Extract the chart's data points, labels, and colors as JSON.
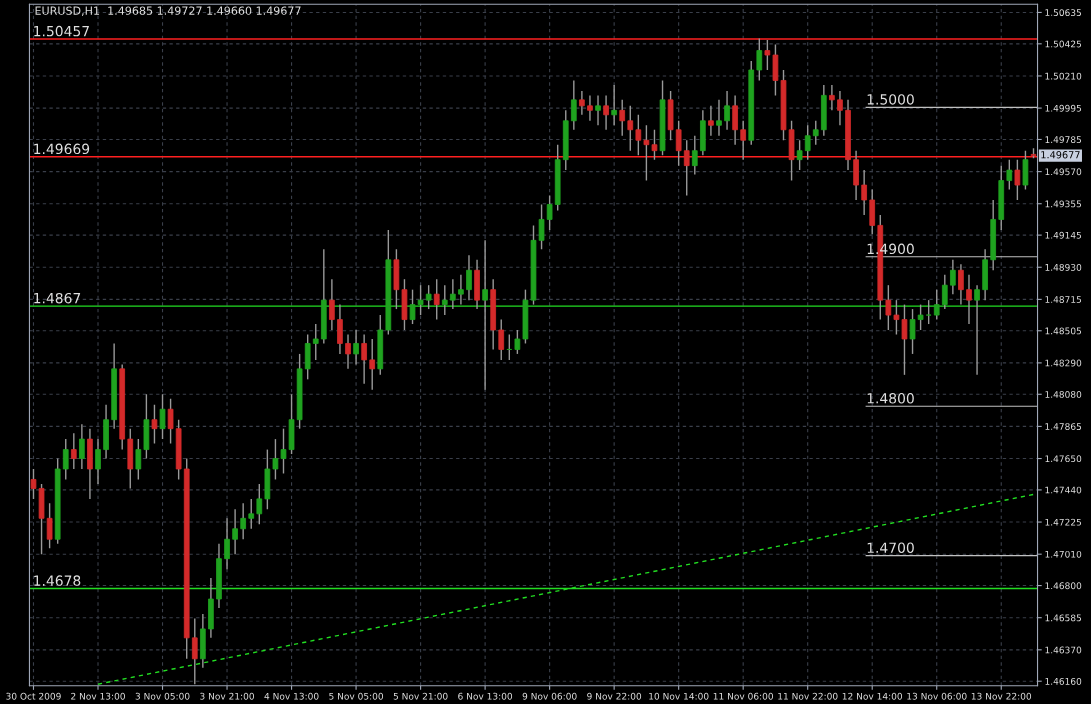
{
  "chart_data": {
    "type": "candlestick",
    "title": "EURUSD,H1  1.49685 1.49727 1.49660 1.49677",
    "categories": [
      "30 Oct 2009",
      null,
      null,
      null,
      null,
      null,
      null,
      null,
      "2 Nov 13:00",
      null,
      null,
      null,
      null,
      null,
      null,
      null,
      "3 Nov 05:00",
      null,
      null,
      null,
      null,
      null,
      null,
      null,
      "3 Nov 21:00",
      null,
      null,
      null,
      null,
      null,
      null,
      null,
      "4 Nov 13:00",
      null,
      null,
      null,
      null,
      null,
      null,
      null,
      "5 Nov 05:00",
      null,
      null,
      null,
      null,
      null,
      null,
      null,
      "5 Nov 21:00",
      null,
      null,
      null,
      null,
      null,
      null,
      null,
      "6 Nov 13:00",
      null,
      null,
      null,
      null,
      null,
      null,
      null,
      "9 Nov 06:00",
      null,
      null,
      null,
      null,
      null,
      null,
      null,
      "9 Nov 22:00",
      null,
      null,
      null,
      null,
      null,
      null,
      null,
      "10 Nov 14:00",
      null,
      null,
      null,
      null,
      null,
      null,
      null,
      "11 Nov 06:00",
      null,
      null,
      null,
      null,
      null,
      null,
      null,
      "11 Nov 22:00",
      null,
      null,
      null,
      null,
      null,
      null,
      null,
      "12 Nov 14:00",
      null,
      null,
      null,
      null,
      null,
      null,
      null,
      "13 Nov 06:00",
      null,
      null,
      null,
      null,
      null,
      null,
      null,
      "13 Nov 22:00",
      null,
      null,
      null,
      null
    ],
    "ohlc": [
      [
        1.4751,
        1.4758,
        1.4738,
        1.4745
      ],
      [
        1.4745,
        1.4748,
        1.4701,
        1.4725
      ],
      [
        1.4725,
        1.4735,
        1.4705,
        1.4711
      ],
      [
        1.4711,
        1.4765,
        1.4708,
        1.4758
      ],
      [
        1.4758,
        1.4778,
        1.4751,
        1.4771
      ],
      [
        1.4771,
        1.4782,
        1.4758,
        1.4765
      ],
      [
        1.4765,
        1.4788,
        1.4758,
        1.4778
      ],
      [
        1.4778,
        1.4785,
        1.4738,
        1.4758
      ],
      [
        1.4758,
        1.4778,
        1.4748,
        1.4771
      ],
      [
        1.4771,
        1.4801,
        1.4765,
        1.4791
      ],
      [
        1.4791,
        1.4842,
        1.4785,
        1.4825
      ],
      [
        1.4825,
        1.4828,
        1.4771,
        1.4778
      ],
      [
        1.4778,
        1.4785,
        1.4745,
        1.4758
      ],
      [
        1.4758,
        1.4778,
        1.4751,
        1.4771
      ],
      [
        1.4771,
        1.4808,
        1.4765,
        1.4791
      ],
      [
        1.4791,
        1.4801,
        1.4775,
        1.4785
      ],
      [
        1.4785,
        1.4808,
        1.4778,
        1.4798
      ],
      [
        1.4798,
        1.4805,
        1.4775,
        1.4785
      ],
      [
        1.4785,
        1.4791,
        1.4751,
        1.4758
      ],
      [
        1.4758,
        1.4765,
        1.4631,
        1.4645
      ],
      [
        1.4645,
        1.4658,
        1.4614,
        1.4631
      ],
      [
        1.4631,
        1.4661,
        1.4625,
        1.4651
      ],
      [
        1.4651,
        1.4685,
        1.4645,
        1.4671
      ],
      [
        1.4671,
        1.4708,
        1.4665,
        1.4698
      ],
      [
        1.4698,
        1.4725,
        1.4691,
        1.4711
      ],
      [
        1.4711,
        1.4731,
        1.4701,
        1.4718
      ],
      [
        1.4718,
        1.4735,
        1.4711,
        1.4725
      ],
      [
        1.4725,
        1.4738,
        1.4718,
        1.4728
      ],
      [
        1.4728,
        1.4748,
        1.4721,
        1.4738
      ],
      [
        1.4738,
        1.4771,
        1.4731,
        1.4758
      ],
      [
        1.4758,
        1.4778,
        1.4751,
        1.4765
      ],
      [
        1.4765,
        1.4785,
        1.4755,
        1.4771
      ],
      [
        1.4771,
        1.4808,
        1.4768,
        1.4791
      ],
      [
        1.4791,
        1.4835,
        1.4785,
        1.4825
      ],
      [
        1.4825,
        1.4848,
        1.4818,
        1.4842
      ],
      [
        1.4842,
        1.4855,
        1.4831,
        1.4845
      ],
      [
        1.4845,
        1.4905,
        1.4842,
        1.4871
      ],
      [
        1.4871,
        1.4885,
        1.4851,
        1.4858
      ],
      [
        1.4858,
        1.4868,
        1.4835,
        1.4842
      ],
      [
        1.4842,
        1.4848,
        1.4825,
        1.4835
      ],
      [
        1.4835,
        1.4851,
        1.4828,
        1.4842
      ],
      [
        1.4842,
        1.4848,
        1.4815,
        1.4831
      ],
      [
        1.4831,
        1.4845,
        1.4811,
        1.4825
      ],
      [
        1.4825,
        1.4861,
        1.4821,
        1.4851
      ],
      [
        1.4851,
        1.4918,
        1.4848,
        1.4898
      ],
      [
        1.4898,
        1.4905,
        1.4865,
        1.4878
      ],
      [
        1.4878,
        1.4885,
        1.4851,
        1.4858
      ],
      [
        1.4858,
        1.4878,
        1.4855,
        1.4868
      ],
      [
        1.4868,
        1.4881,
        1.4861,
        1.4871
      ],
      [
        1.4871,
        1.4881,
        1.4865,
        1.4875
      ],
      [
        1.4875,
        1.4885,
        1.4858,
        1.4868
      ],
      [
        1.4868,
        1.4881,
        1.4861,
        1.4871
      ],
      [
        1.4871,
        1.4885,
        1.4865,
        1.4875
      ],
      [
        1.4875,
        1.4888,
        1.4868,
        1.4878
      ],
      [
        1.4878,
        1.4901,
        1.4871,
        1.4891
      ],
      [
        1.4891,
        1.4898,
        1.4865,
        1.4871
      ],
      [
        1.4871,
        1.4911,
        1.4811,
        1.4878
      ],
      [
        1.4878,
        1.4885,
        1.4838,
        1.4851
      ],
      [
        1.4851,
        1.4858,
        1.4831,
        1.4838
      ],
      [
        1.4838,
        1.4848,
        1.4831,
        1.4838
      ],
      [
        1.4838,
        1.4851,
        1.4835,
        1.4845
      ],
      [
        1.4845,
        1.4878,
        1.4842,
        1.4871
      ],
      [
        1.4871,
        1.4921,
        1.4868,
        1.4911
      ],
      [
        1.4911,
        1.4935,
        1.4905,
        1.4925
      ],
      [
        1.4925,
        1.4941,
        1.4918,
        1.4935
      ],
      [
        1.4935,
        1.4975,
        1.4931,
        1.4965
      ],
      [
        1.4965,
        1.4998,
        1.4958,
        1.4991
      ],
      [
        1.4991,
        1.5018,
        1.4985,
        1.5005
      ],
      [
        1.5005,
        1.5011,
        1.4995,
        1.5001
      ],
      [
        1.5001,
        1.5008,
        1.4991,
        1.4998
      ],
      [
        1.4998,
        1.5008,
        1.4988,
        1.5001
      ],
      [
        1.5001,
        1.5008,
        1.4985,
        1.4995
      ],
      [
        1.4995,
        1.5015,
        1.4988,
        1.4998
      ],
      [
        1.4998,
        1.5005,
        1.4981,
        1.4991
      ],
      [
        1.4991,
        1.5001,
        1.4971,
        1.4985
      ],
      [
        1.4985,
        1.4995,
        1.4968,
        1.4978
      ],
      [
        1.4978,
        1.4988,
        1.4951,
        1.4975
      ],
      [
        1.4975,
        1.4985,
        1.4965,
        1.4971
      ],
      [
        1.4971,
        1.5018,
        1.4968,
        1.5005
      ],
      [
        1.5005,
        1.5011,
        1.4978,
        1.4985
      ],
      [
        1.4985,
        1.4991,
        1.4961,
        1.4971
      ],
      [
        1.4971,
        1.4978,
        1.4941,
        1.4961
      ],
      [
        1.4961,
        1.4981,
        1.4955,
        1.4971
      ],
      [
        1.4971,
        1.4998,
        1.4968,
        1.4991
      ],
      [
        1.4991,
        1.5001,
        1.4981,
        1.4988
      ],
      [
        1.4988,
        1.5005,
        1.4981,
        1.4991
      ],
      [
        1.4991,
        1.5011,
        1.4985,
        1.5001
      ],
      [
        1.5001,
        1.5008,
        1.4975,
        1.4985
      ],
      [
        1.4985,
        1.4991,
        1.4965,
        1.4978
      ],
      [
        1.4978,
        1.5031,
        1.4975,
        1.5025
      ],
      [
        1.5025,
        1.5046,
        1.5018,
        1.5038
      ],
      [
        1.5038,
        1.5045,
        1.5025,
        1.5035
      ],
      [
        1.5035,
        1.5042,
        1.5008,
        1.5018
      ],
      [
        1.5018,
        1.5025,
        1.4978,
        1.4985
      ],
      [
        1.4985,
        1.4991,
        1.4951,
        1.4965
      ],
      [
        1.4965,
        1.4978,
        1.4958,
        1.4971
      ],
      [
        1.4971,
        1.4988,
        1.4965,
        1.4981
      ],
      [
        1.4981,
        1.4991,
        1.4975,
        1.4985
      ],
      [
        1.4985,
        1.5015,
        1.4981,
        1.5008
      ],
      [
        1.5008,
        1.5015,
        1.4998,
        1.5005
      ],
      [
        1.5005,
        1.5011,
        1.4988,
        1.4998
      ],
      [
        1.4998,
        1.5005,
        1.4958,
        1.4965
      ],
      [
        1.4965,
        1.4971,
        1.4938,
        1.4948
      ],
      [
        1.4948,
        1.4958,
        1.4928,
        1.4938
      ],
      [
        1.4938,
        1.4945,
        1.4915,
        1.4921
      ],
      [
        1.4921,
        1.4928,
        1.4858,
        1.4871
      ],
      [
        1.4871,
        1.4881,
        1.4851,
        1.4861
      ],
      [
        1.4861,
        1.4871,
        1.4848,
        1.4858
      ],
      [
        1.4858,
        1.4868,
        1.4821,
        1.4845
      ],
      [
        1.4845,
        1.4865,
        1.4835,
        1.4858
      ],
      [
        1.4858,
        1.4868,
        1.4851,
        1.4861
      ],
      [
        1.4861,
        1.4871,
        1.4855,
        1.4861
      ],
      [
        1.4861,
        1.4878,
        1.4858,
        1.4868
      ],
      [
        1.4868,
        1.4888,
        1.4865,
        1.4881
      ],
      [
        1.4881,
        1.4898,
        1.4875,
        1.4891
      ],
      [
        1.4891,
        1.4895,
        1.4868,
        1.4878
      ],
      [
        1.4878,
        1.4888,
        1.4855,
        1.4871
      ],
      [
        1.4871,
        1.4881,
        1.4821,
        1.4878
      ],
      [
        1.4878,
        1.4905,
        1.4871,
        1.4898
      ],
      [
        1.4898,
        1.4938,
        1.4891,
        1.4925
      ],
      [
        1.4925,
        1.4961,
        1.4918,
        1.4951
      ],
      [
        1.4951,
        1.4965,
        1.4945,
        1.4958
      ],
      [
        1.4958,
        1.4965,
        1.4938,
        1.4948
      ],
      [
        1.4948,
        1.4971,
        1.4945,
        1.4965
      ],
      [
        1.49685,
        1.49727,
        1.4966,
        1.49677
      ]
    ],
    "colors": [
      "#d42a2a",
      "#d42a2a",
      "#d42a2a",
      "#1fa31f",
      "#1fa31f",
      "#d42a2a",
      "#1fa31f",
      "#d42a2a",
      "#1fa31f",
      "#1fa31f",
      "#1fa31f",
      "#d42a2a",
      "#d42a2a",
      "#1fa31f",
      "#1fa31f",
      "#d42a2a",
      "#1fa31f",
      "#d42a2a",
      "#d42a2a",
      "#d42a2a",
      "#d42a2a",
      "#1fa31f",
      "#1fa31f",
      "#1fa31f",
      "#1fa31f",
      "#1fa31f",
      "#1fa31f",
      "#1fa31f",
      "#1fa31f",
      "#1fa31f",
      "#1fa31f",
      "#1fa31f",
      "#1fa31f",
      "#1fa31f",
      "#1fa31f",
      "#1fa31f",
      "#1fa31f",
      "#d42a2a",
      "#d42a2a",
      "#d42a2a",
      "#1fa31f",
      "#d42a2a",
      "#d42a2a",
      "#1fa31f",
      "#1fa31f",
      "#d42a2a",
      "#d42a2a",
      "#1fa31f",
      "#1fa31f",
      "#1fa31f",
      "#d42a2a",
      "#1fa31f",
      "#1fa31f",
      "#1fa31f",
      "#1fa31f",
      "#d42a2a",
      "#1fa31f",
      "#d42a2a",
      "#d42a2a",
      "#1fa31f",
      "#1fa31f",
      "#1fa31f",
      "#1fa31f",
      "#1fa31f",
      "#1fa31f",
      "#1fa31f",
      "#1fa31f",
      "#1fa31f",
      "#d42a2a",
      "#d42a2a",
      "#1fa31f",
      "#d42a2a",
      "#1fa31f",
      "#d42a2a",
      "#d42a2a",
      "#d42a2a",
      "#d42a2a",
      "#d42a2a",
      "#1fa31f",
      "#d42a2a",
      "#d42a2a",
      "#d42a2a",
      "#1fa31f",
      "#1fa31f",
      "#d42a2a",
      "#1fa31f",
      "#1fa31f",
      "#d42a2a",
      "#d42a2a",
      "#1fa31f",
      "#1fa31f",
      "#d42a2a",
      "#d42a2a",
      "#d42a2a",
      "#d42a2a",
      "#1fa31f",
      "#1fa31f",
      "#1fa31f",
      "#1fa31f",
      "#d42a2a",
      "#d42a2a",
      "#d42a2a",
      "#d42a2a",
      "#d42a2a",
      "#d42a2a",
      "#d42a2a",
      "#d42a2a",
      "#d42a2a",
      "#d42a2a",
      "#1fa31f",
      "#1fa31f",
      "#1fa31f",
      "#1fa31f",
      "#1fa31f",
      "#1fa31f",
      "#d42a2a",
      "#d42a2a",
      "#1fa31f",
      "#1fa31f",
      "#1fa31f",
      "#1fa31f",
      "#1fa31f",
      "#d42a2a",
      "#1fa31f",
      "#d42a2a"
    ],
    "series": [
      {
        "type": "line",
        "values": [
          null,
          null,
          null,
          null,
          null,
          null,
          null,
          null,
          1.4614,
          null,
          null,
          null,
          null,
          null,
          null,
          null,
          null,
          null,
          null,
          null,
          null,
          null,
          null,
          null,
          null,
          null,
          null,
          null,
          null,
          null,
          null,
          null,
          null,
          null,
          null,
          null,
          null,
          null,
          null,
          null,
          null,
          null,
          null,
          null,
          null,
          null,
          null,
          null,
          null,
          null,
          null,
          null,
          null,
          null,
          null,
          null,
          null,
          null,
          null,
          null,
          null,
          null,
          null,
          null,
          null,
          null,
          null,
          null,
          null,
          null,
          null,
          null,
          null,
          null,
          null,
          null,
          null,
          null,
          null,
          null,
          null,
          null,
          null,
          null,
          null,
          null,
          null,
          null,
          null,
          null,
          null,
          null,
          null,
          null,
          null,
          null,
          null,
          null,
          null,
          null,
          null,
          null,
          null,
          null,
          null,
          null,
          null,
          null,
          null,
          null,
          null,
          null,
          null,
          null,
          null,
          null,
          null,
          null,
          null,
          null,
          null,
          null,
          null,
          null,
          1.4741
        ],
        "color": "#22dd22",
        "line_style": "dashed"
      }
    ],
    "ylim": [
      1.4613,
      1.5069
    ],
    "yticks": [
      {
        "value": 1.4616,
        "label": "1.46160"
      },
      {
        "value": 1.4637,
        "label": "1.46370"
      },
      {
        "value": 1.46585,
        "label": "1.46585"
      },
      {
        "value": 1.468,
        "label": "1.46800"
      },
      {
        "value": 1.4701,
        "label": "1.47010"
      },
      {
        "value": 1.47225,
        "label": "1.47225"
      },
      {
        "value": 1.4744,
        "label": "1.47440"
      },
      {
        "value": 1.4765,
        "label": "1.47650"
      },
      {
        "value": 1.47865,
        "label": "1.47865"
      },
      {
        "value": 1.4808,
        "label": "1.48080"
      },
      {
        "value": 1.4829,
        "label": "1.48290"
      },
      {
        "value": 1.48505,
        "label": "1.48505"
      },
      {
        "value": 1.48715,
        "label": "1.48715"
      },
      {
        "value": 1.4893,
        "label": "1.48930"
      },
      {
        "value": 1.49145,
        "label": "1.49145"
      },
      {
        "value": 1.49355,
        "label": "1.49355"
      },
      {
        "value": 1.4957,
        "label": "1.49570"
      },
      {
        "value": 1.49785,
        "label": "1.49785"
      },
      {
        "value": 1.49995,
        "label": "1.49995"
      },
      {
        "value": 1.5021,
        "label": "1.50210"
      },
      {
        "value": 1.50425,
        "label": "1.50425"
      },
      {
        "value": 1.50635,
        "label": "1.50635"
      }
    ],
    "ref_lines": [
      {
        "axis": "y",
        "value": 1.50457,
        "label": "1.50457",
        "color": "#ff2020"
      },
      {
        "axis": "y",
        "value": 1.49669,
        "label": "1.49669",
        "color": "#ff2020"
      },
      {
        "axis": "y",
        "value": 1.4867,
        "label": "1.4867",
        "color": "#22dd22"
      },
      {
        "axis": "y",
        "value": 1.4678,
        "label": "1.4678",
        "color": "#22dd22"
      },
      {
        "axis": "y",
        "value": 1.5,
        "label": "1.5000"
      },
      {
        "axis": "y",
        "value": 1.49,
        "label": "1.4900"
      },
      {
        "axis": "y",
        "value": 1.48,
        "label": "1.4800"
      },
      {
        "axis": "y",
        "value": 1.47,
        "label": "1.4700"
      }
    ],
    "annotations": [
      "1.49677"
    ],
    "grid": true
  }
}
